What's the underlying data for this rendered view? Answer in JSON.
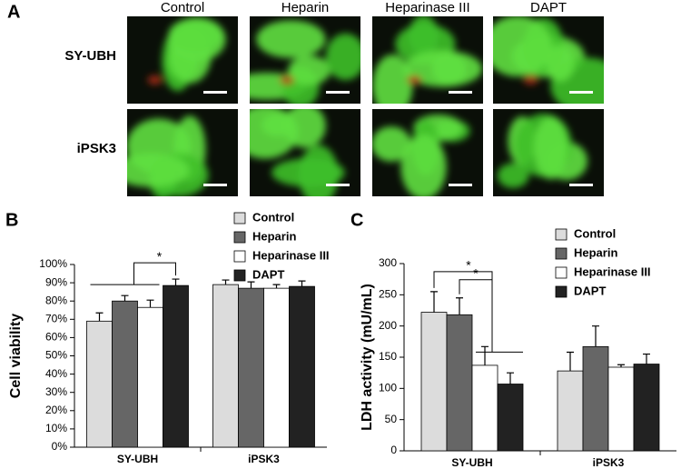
{
  "panel_labels": [
    "A",
    "B",
    "C"
  ],
  "micrographs": {
    "columns": [
      "Control",
      "Heparin",
      "Heparinase III",
      "DAPT"
    ],
    "rows": [
      "SY-UBH",
      "iPSK3"
    ]
  },
  "chart_data": [
    {
      "type": "bar",
      "ylabel": "Cell viability",
      "categories": [
        "SY-UBH",
        "iPSK3"
      ],
      "series": [
        {
          "name": "Control",
          "color": "#dcdcdc",
          "values": [
            69,
            89
          ],
          "errors": [
            4.5,
            2.5
          ]
        },
        {
          "name": "Heparin",
          "color": "#666666",
          "values": [
            80,
            87
          ],
          "errors": [
            3,
            3.5
          ]
        },
        {
          "name": "Heparinase III",
          "color": "#ffffff",
          "values": [
            76.5,
            87
          ],
          "errors": [
            4,
            2
          ]
        },
        {
          "name": "DAPT",
          "color": "#222222",
          "values": [
            88.5,
            88
          ],
          "errors": [
            3.5,
            3
          ]
        }
      ],
      "ylim": [
        0,
        100
      ],
      "yticks": [
        {
          "value": 0,
          "label": "0%"
        },
        {
          "value": 10,
          "label": "10%"
        },
        {
          "value": 20,
          "label": "20%"
        },
        {
          "value": 30,
          "label": "30%"
        },
        {
          "value": 40,
          "label": "40%"
        },
        {
          "value": 50,
          "label": "50%"
        },
        {
          "value": 60,
          "label": "60%"
        },
        {
          "value": 70,
          "label": "70%"
        },
        {
          "value": 80,
          "label": "80%"
        },
        {
          "value": 90,
          "label": "90%"
        },
        {
          "value": 100,
          "label": "100%"
        }
      ],
      "legend": "top-right",
      "annotations": [
        "*"
      ]
    },
    {
      "type": "bar",
      "ylabel": "LDH activity (mU/mL)",
      "categories": [
        "SY-UBH",
        "iPSK3"
      ],
      "series": [
        {
          "name": "Control",
          "color": "#dcdcdc",
          "values": [
            222,
            128
          ],
          "errors": [
            33,
            30
          ]
        },
        {
          "name": "Heparin",
          "color": "#666666",
          "values": [
            218,
            167
          ],
          "errors": [
            27,
            33
          ]
        },
        {
          "name": "Heparinase III",
          "color": "#ffffff",
          "values": [
            137,
            134
          ],
          "errors": [
            30,
            4
          ]
        },
        {
          "name": "DAPT",
          "color": "#222222",
          "values": [
            107,
            139
          ],
          "errors": [
            18,
            16
          ]
        }
      ],
      "ylim": [
        0,
        300
      ],
      "yticks": [
        0,
        50,
        100,
        150,
        200,
        250,
        300
      ],
      "legend": "top-right",
      "annotations": [
        "*",
        "*"
      ]
    }
  ]
}
